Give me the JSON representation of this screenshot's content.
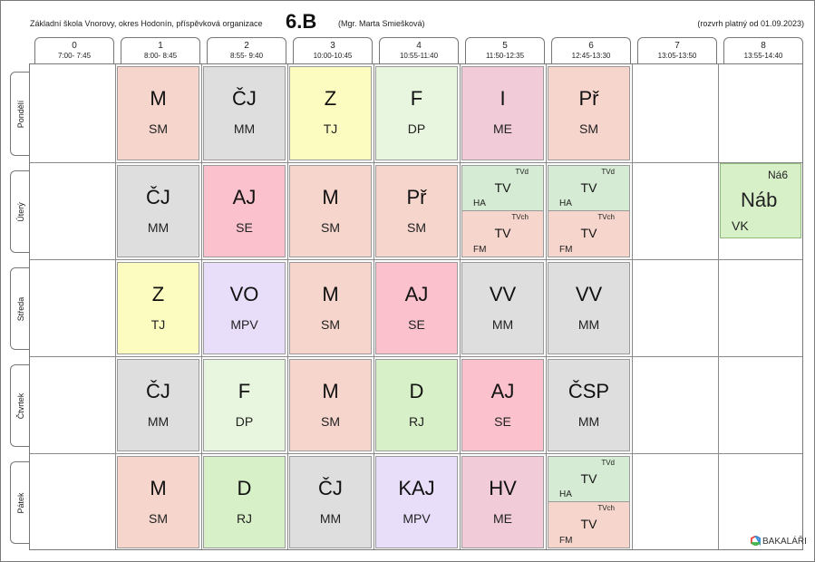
{
  "header": {
    "school": "Základní škola Vnorovy, okres Hodonín, příspěvková organizace",
    "class_name": "6.B",
    "teacher": "(Mgr. Marta Smiešková)",
    "valid_from": "(rozvrh platný od 01.09.2023)"
  },
  "periods": [
    {
      "num": "0",
      "time": "7:00- 7:45"
    },
    {
      "num": "1",
      "time": "8:00- 8:45"
    },
    {
      "num": "2",
      "time": "8:55- 9:40"
    },
    {
      "num": "3",
      "time": "10:00-10:45"
    },
    {
      "num": "4",
      "time": "10:55-11:40"
    },
    {
      "num": "5",
      "time": "11:50-12:35"
    },
    {
      "num": "6",
      "time": "12:45-13:30"
    },
    {
      "num": "7",
      "time": "13:05-13:50"
    },
    {
      "num": "8",
      "time": "13:55-14:40"
    }
  ],
  "days": [
    "Pondělí",
    "Úterý",
    "Středa",
    "Čtvrtek",
    "Pátek"
  ],
  "lessons": [
    [
      null,
      {
        "subject": "M",
        "teacher": "SM",
        "color": "#f5d5cc"
      },
      {
        "subject": "ČJ",
        "teacher": "MM",
        "color": "#dedede"
      },
      {
        "subject": "Z",
        "teacher": "TJ",
        "color": "#fcfcc0"
      },
      {
        "subject": "F",
        "teacher": "DP",
        "color": "#e8f5df"
      },
      {
        "subject": "I",
        "teacher": "ME",
        "color": "#f2cbd9"
      },
      {
        "subject": "Př",
        "teacher": "SM",
        "color": "#f5d5cc"
      },
      null,
      null
    ],
    [
      null,
      {
        "subject": "ČJ",
        "teacher": "MM",
        "color": "#dedede"
      },
      {
        "subject": "AJ",
        "teacher": "SE",
        "color": "#fbc2cd"
      },
      {
        "subject": "M",
        "teacher": "SM",
        "color": "#f5d5cc"
      },
      {
        "subject": "Př",
        "teacher": "SM",
        "color": "#f5d5cc"
      },
      {
        "split": [
          {
            "group": "TVd",
            "subject": "TV",
            "teacher": "HA",
            "color": "#d5ebd4"
          },
          {
            "group": "TVch",
            "subject": "TV",
            "teacher": "FM",
            "color": "#f5d5cc"
          }
        ]
      },
      {
        "split": [
          {
            "group": "TVd",
            "subject": "TV",
            "teacher": "HA",
            "color": "#d5ebd4"
          },
          {
            "group": "TVch",
            "subject": "TV",
            "teacher": "FM",
            "color": "#f5d5cc"
          }
        ]
      },
      null,
      null
    ],
    [
      null,
      {
        "subject": "Z",
        "teacher": "TJ",
        "color": "#fcfcc0"
      },
      {
        "subject": "VO",
        "teacher": "MPV",
        "color": "#e8defa"
      },
      {
        "subject": "M",
        "teacher": "SM",
        "color": "#f5d5cc"
      },
      {
        "subject": "AJ",
        "teacher": "SE",
        "color": "#fbc2cd"
      },
      {
        "subject": "VV",
        "teacher": "MM",
        "color": "#dedede"
      },
      {
        "subject": "VV",
        "teacher": "MM",
        "color": "#dedede"
      },
      null,
      null
    ],
    [
      null,
      {
        "subject": "ČJ",
        "teacher": "MM",
        "color": "#dedede"
      },
      {
        "subject": "F",
        "teacher": "DP",
        "color": "#e8f5df"
      },
      {
        "subject": "M",
        "teacher": "SM",
        "color": "#f5d5cc"
      },
      {
        "subject": "D",
        "teacher": "RJ",
        "color": "#d8f0c8"
      },
      {
        "subject": "AJ",
        "teacher": "SE",
        "color": "#fbc2cd"
      },
      {
        "subject": "ČSP",
        "teacher": "MM",
        "color": "#dedede"
      },
      null,
      null
    ],
    [
      null,
      {
        "subject": "M",
        "teacher": "SM",
        "color": "#f5d5cc"
      },
      {
        "subject": "D",
        "teacher": "RJ",
        "color": "#d8f0c8"
      },
      {
        "subject": "ČJ",
        "teacher": "MM",
        "color": "#dedede"
      },
      {
        "subject": "KAJ",
        "teacher": "MPV",
        "color": "#e8defa"
      },
      {
        "subject": "HV",
        "teacher": "ME",
        "color": "#f2cbd9"
      },
      {
        "split": [
          {
            "group": "TVd",
            "subject": "TV",
            "teacher": "HA",
            "color": "#d5ebd4"
          },
          {
            "group": "TVch",
            "subject": "TV",
            "teacher": "FM",
            "color": "#f5d5cc"
          }
        ]
      },
      null,
      null
    ]
  ],
  "extra": {
    "group": "Ná6",
    "subject": "Náb",
    "teacher": "VK",
    "color": "#d8f0c8"
  },
  "logo_text": "BAKALÁŘI"
}
